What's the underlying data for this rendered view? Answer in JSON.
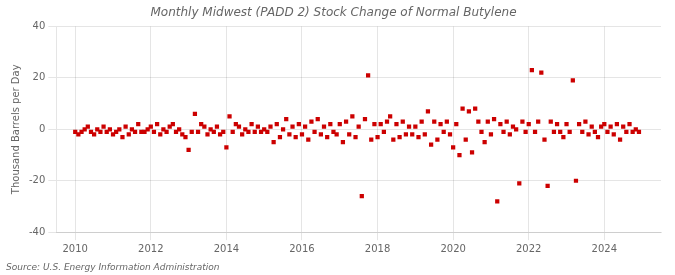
{
  "chart_data": {
    "type": "scatter",
    "title": "Monthly Midwest (PADD 2) Stock Change of Normal Butylene",
    "y_label": "Thousand Barrels per Day",
    "annotations": [
      "Source: U.S. Energy Information Administration"
    ],
    "color": "#cc0000",
    "marker": "square",
    "grid": true,
    "xlim": [
      2009.5,
      2025.5
    ],
    "xticks": [
      2010,
      2012,
      2014,
      2016,
      2018,
      2020,
      2022,
      2024
    ],
    "ylim": [
      -40,
      40
    ],
    "yticks": [
      -40,
      -20,
      0,
      20,
      40
    ],
    "x": [
      2010.0,
      2010.083,
      2010.167,
      2010.25,
      2010.333,
      2010.417,
      2010.5,
      2010.583,
      2010.667,
      2010.75,
      2010.833,
      2010.917,
      2011.0,
      2011.083,
      2011.167,
      2011.25,
      2011.333,
      2011.417,
      2011.5,
      2011.583,
      2011.667,
      2011.75,
      2011.833,
      2011.917,
      2012.0,
      2012.083,
      2012.167,
      2012.25,
      2012.333,
      2012.417,
      2012.5,
      2012.583,
      2012.667,
      2012.75,
      2012.833,
      2012.917,
      2013.0,
      2013.083,
      2013.167,
      2013.25,
      2013.333,
      2013.417,
      2013.5,
      2013.583,
      2013.667,
      2013.75,
      2013.833,
      2013.917,
      2014.0,
      2014.083,
      2014.167,
      2014.25,
      2014.333,
      2014.417,
      2014.5,
      2014.583,
      2014.667,
      2014.75,
      2014.833,
      2014.917,
      2015.0,
      2015.083,
      2015.167,
      2015.25,
      2015.333,
      2015.417,
      2015.5,
      2015.583,
      2015.667,
      2015.75,
      2015.833,
      2015.917,
      2016.0,
      2016.083,
      2016.167,
      2016.25,
      2016.333,
      2016.417,
      2016.5,
      2016.583,
      2016.667,
      2016.75,
      2016.833,
      2016.917,
      2017.0,
      2017.083,
      2017.167,
      2017.25,
      2017.333,
      2017.417,
      2017.5,
      2017.583,
      2017.667,
      2017.75,
      2017.833,
      2017.917,
      2018.0,
      2018.083,
      2018.167,
      2018.25,
      2018.333,
      2018.417,
      2018.5,
      2018.583,
      2018.667,
      2018.75,
      2018.833,
      2018.917,
      2019.0,
      2019.083,
      2019.167,
      2019.25,
      2019.333,
      2019.417,
      2019.5,
      2019.583,
      2019.667,
      2019.75,
      2019.833,
      2019.917,
      2020.0,
      2020.083,
      2020.167,
      2020.25,
      2020.333,
      2020.417,
      2020.5,
      2020.583,
      2020.667,
      2020.75,
      2020.833,
      2020.917,
      2021.0,
      2021.083,
      2021.167,
      2021.25,
      2021.333,
      2021.417,
      2021.5,
      2021.583,
      2021.667,
      2021.75,
      2021.833,
      2021.917,
      2022.0,
      2022.083,
      2022.167,
      2022.25,
      2022.333,
      2022.417,
      2022.5,
      2022.583,
      2022.667,
      2022.75,
      2022.833,
      2022.917,
      2023.0,
      2023.083,
      2023.167,
      2023.25,
      2023.333,
      2023.417,
      2023.5,
      2023.583,
      2023.667,
      2023.75,
      2023.833,
      2023.917,
      2024.0,
      2024.083,
      2024.167,
      2024.25,
      2024.333,
      2024.417,
      2024.5,
      2024.583,
      2024.667,
      2024.75,
      2024.833,
      2024.917
    ],
    "values": [
      -1,
      -2,
      -1,
      0,
      1,
      -1,
      -2,
      0,
      -1,
      1,
      -1,
      0,
      -2,
      -1,
      0,
      -3,
      1,
      -2,
      0,
      -1,
      2,
      -1,
      -1,
      0,
      1,
      -1,
      2,
      -2,
      0,
      -1,
      1,
      2,
      -1,
      0,
      -2,
      -3,
      -8,
      -1,
      6,
      -1,
      2,
      1,
      -2,
      0,
      -1,
      1,
      -2,
      -1,
      -7,
      5,
      -1,
      2,
      1,
      -2,
      0,
      -1,
      2,
      -1,
      1,
      -1,
      0,
      -1,
      1,
      -5,
      2,
      -3,
      0,
      4,
      -2,
      1,
      -3,
      2,
      -2,
      1,
      -4,
      3,
      -1,
      4,
      -2,
      1,
      -3,
      2,
      -1,
      -2,
      2,
      -5,
      3,
      -2,
      5,
      -3,
      1,
      -26,
      4,
      21,
      -4,
      2,
      -3,
      2,
      -1,
      3,
      5,
      -4,
      2,
      -3,
      3,
      -2,
      1,
      -2,
      1,
      -3,
      3,
      -2,
      7,
      -6,
      3,
      -4,
      2,
      -1,
      3,
      -2,
      -7,
      2,
      -10,
      8,
      -4,
      7,
      -9,
      8,
      3,
      -1,
      -5,
      3,
      -2,
      4,
      -28,
      2,
      -1,
      3,
      -2,
      1,
      0,
      -21,
      3,
      -1,
      2,
      23,
      -1,
      3,
      22,
      -4,
      -22,
      3,
      -1,
      2,
      -1,
      -3,
      2,
      -1,
      19,
      -20,
      2,
      -1,
      3,
      -2,
      1,
      -1,
      -3,
      1,
      2,
      -1,
      1,
      -2,
      2,
      -4,
      1,
      -1,
      2,
      -1,
      0,
      -1
    ]
  }
}
